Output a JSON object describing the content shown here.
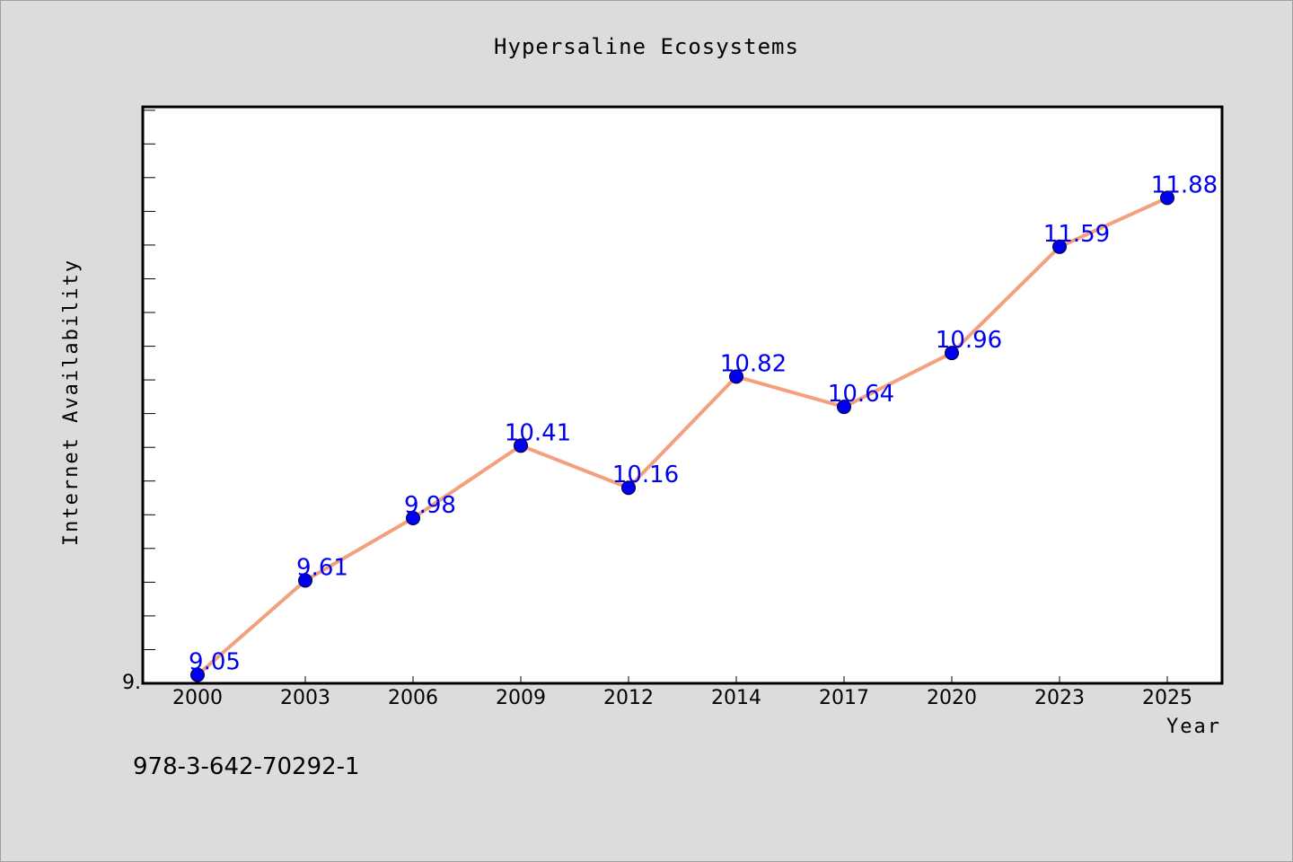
{
  "chart_data": {
    "type": "line",
    "title": "Hypersaline Ecosystems",
    "xlabel": "Year",
    "ylabel": "Internet Availability",
    "categories": [
      "2000",
      "2003",
      "2006",
      "2009",
      "2012",
      "2014",
      "2017",
      "2020",
      "2023",
      "2025"
    ],
    "series": [
      {
        "values": [
          9.05,
          9.61,
          9.98,
          10.41,
          10.16,
          10.82,
          10.64,
          10.96,
          11.59,
          11.88
        ]
      }
    ],
    "data_labels": [
      "9.05",
      "9.61",
      "9.98",
      "10.41",
      "10.16",
      "10.82",
      "10.64",
      "10.96",
      "11.59",
      "11.88"
    ],
    "y_tick_label": "9.",
    "ylim": [
      9.0,
      12.42
    ],
    "grid": false,
    "legend": "none",
    "colors": {
      "line": "#f4a07e",
      "marker": "#0000ee",
      "data_label": "#0000ee",
      "background": "#dcdcdc",
      "plot_background": "#ffffff"
    }
  },
  "footer": {
    "isbn": "978-3-642-70292-1"
  }
}
